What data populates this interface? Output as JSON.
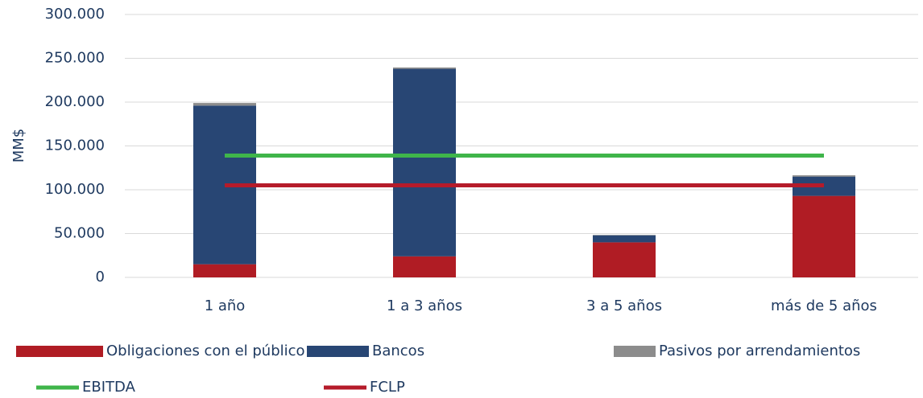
{
  "chart_data": {
    "type": "bar",
    "stacked": true,
    "ylabel": "MM$",
    "categories": [
      "1 año",
      "1 a 3 años",
      "3 a 5 años",
      "más de 5 años"
    ],
    "series": [
      {
        "name": "Obligaciones con el público",
        "color": "#b01c24",
        "values": [
          15000,
          24000,
          40000,
          93000
        ]
      },
      {
        "name": "Bancos",
        "color": "#284674",
        "values": [
          181000,
          214000,
          8000,
          22000
        ]
      },
      {
        "name": "Pasivos por arrendamientos",
        "color": "#8c8c8c",
        "values": [
          3000,
          1500,
          500,
          1500
        ]
      },
      {
        "name": "EBITDA",
        "color": "#3fb54a",
        "type": "line",
        "values": [
          139000,
          139000,
          139000,
          139000
        ]
      },
      {
        "name": "FCLP",
        "color": "#b51b2a",
        "type": "line",
        "values": [
          105000,
          105000,
          105000,
          105000
        ]
      }
    ],
    "ylim": [
      0,
      300000
    ],
    "yticks": [
      0,
      {
        "value": 50000,
        "label": "50.000"
      },
      {
        "value": 100000,
        "label": "100.000"
      },
      {
        "value": 150000,
        "label": "150.000"
      },
      {
        "value": 200000,
        "label": "200.000"
      },
      {
        "value": 250000,
        "label": "250.000"
      },
      {
        "value": 300000,
        "label": "300.000"
      }
    ],
    "grid": true
  }
}
